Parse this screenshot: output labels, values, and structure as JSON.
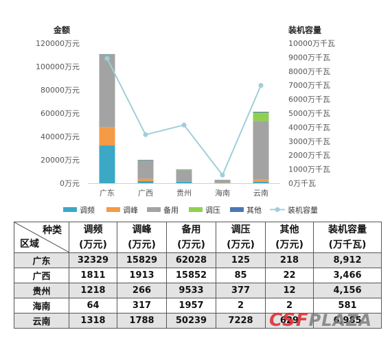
{
  "chart_data": {
    "type": "bar",
    "categories": [
      "广东",
      "广西",
      "贵州",
      "海南",
      "云南"
    ],
    "y_left_title": "金额",
    "y_right_title": "装机容量",
    "y_left_ticks": [
      "120000万元",
      "100000万元",
      "80000万元",
      "60000万元",
      "40000万元",
      "20000万元",
      "0万元"
    ],
    "y_right_ticks": [
      "10000万千瓦",
      "9000万千瓦",
      "8000万千瓦",
      "7000万千瓦",
      "6000万千瓦",
      "5000万千瓦",
      "4000万千瓦",
      "3000万千瓦",
      "2000万千瓦",
      "1000万千瓦",
      "0万千瓦"
    ],
    "ylim_left": [
      0,
      120000
    ],
    "ylim_right": [
      0,
      10000
    ],
    "stacked": true,
    "series": [
      {
        "name": "调频",
        "color": "#3ba8c6",
        "values": [
          32329,
          1811,
          1218,
          64,
          1318
        ]
      },
      {
        "name": "调峰",
        "color": "#f59a46",
        "values": [
          15829,
          1913,
          266,
          317,
          1788
        ]
      },
      {
        "name": "备用",
        "color": "#a3a3a3",
        "values": [
          62028,
          15852,
          9533,
          1957,
          50239
        ]
      },
      {
        "name": "调压",
        "color": "#8fd14f",
        "values": [
          125,
          85,
          377,
          2,
          7228
        ]
      },
      {
        "name": "其他",
        "color": "#4a78b5",
        "values": [
          218,
          22,
          12,
          2,
          629
        ]
      }
    ],
    "line_series": {
      "name": "装机容量",
      "color": "#9fcfd8",
      "axis": "right",
      "values": [
        8912,
        3466,
        4156,
        581,
        6985
      ]
    },
    "grid": false,
    "legend_position": "bottom"
  },
  "table": {
    "corner_top": "种类",
    "corner_bottom": "区域",
    "headers": [
      {
        "line1": "调频",
        "line2": "(万元)"
      },
      {
        "line1": "调峰",
        "line2": "(万元)"
      },
      {
        "line1": "备用",
        "line2": "(万元)"
      },
      {
        "line1": "调压",
        "line2": "(万元)"
      },
      {
        "line1": "其他",
        "line2": "(万元)"
      },
      {
        "line1": "装机容量",
        "line2": "(万千瓦)"
      }
    ],
    "rows": [
      {
        "region": "广东",
        "cells": [
          "32329",
          "15829",
          "62028",
          "125",
          "218",
          "8,912"
        ]
      },
      {
        "region": "广西",
        "cells": [
          "1811",
          "1913",
          "15852",
          "85",
          "22",
          "3,466"
        ]
      },
      {
        "region": "贵州",
        "cells": [
          "1218",
          "266",
          "9533",
          "377",
          "12",
          "4,156"
        ]
      },
      {
        "region": "海南",
        "cells": [
          "64",
          "317",
          "1957",
          "2",
          "2",
          "581"
        ]
      },
      {
        "region": "云南",
        "cells": [
          "1318",
          "1788",
          "50239",
          "7228",
          "629",
          "6,985"
        ]
      }
    ]
  },
  "watermark": {
    "part1": "CSF",
    "part2": "PLAZA"
  }
}
